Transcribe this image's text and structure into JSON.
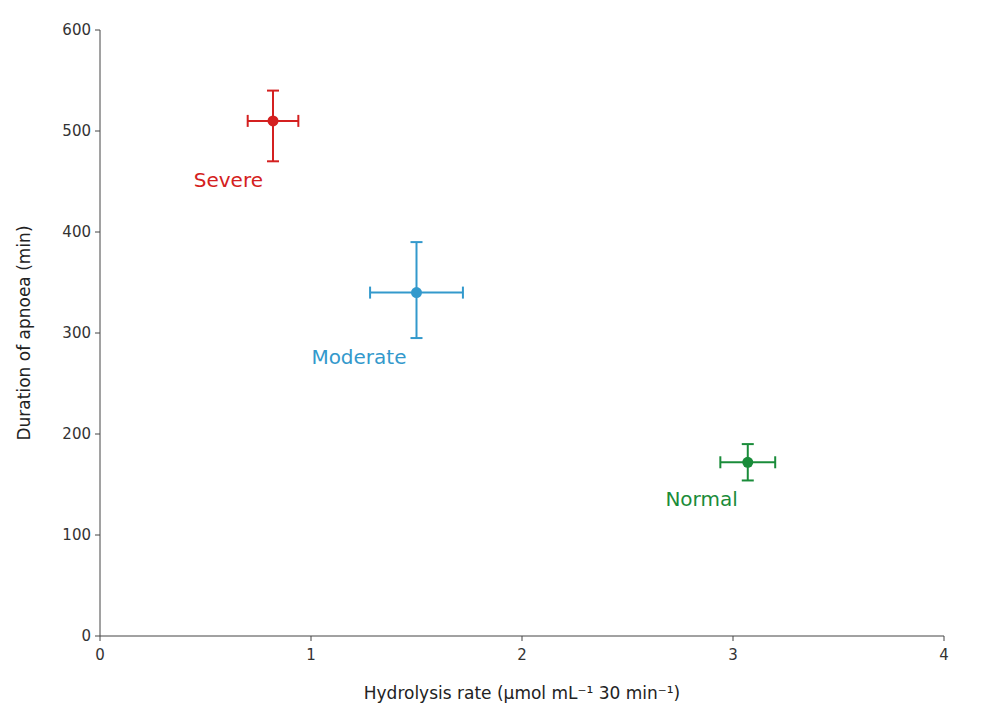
{
  "chart_data": {
    "type": "scatter",
    "xlabel": "Hydrolysis rate (μmol mL⁻¹ 30 min⁻¹)",
    "ylabel": "Duration of apnoea (min)",
    "xlim": [
      0,
      4
    ],
    "ylim": [
      0,
      600
    ],
    "xticks": [
      0,
      1,
      2,
      3,
      4
    ],
    "yticks": [
      0,
      100,
      200,
      300,
      400,
      500,
      600
    ],
    "grid": false,
    "marker": "circle",
    "series": [
      {
        "name": "Severe",
        "color": "#d42020",
        "x": [
          0.82
        ],
        "values": [
          510
        ],
        "xerr": [
          0.12
        ],
        "yerr_low": [
          40
        ],
        "yerr_high": [
          30
        ]
      },
      {
        "name": "Moderate",
        "color": "#3399cc",
        "x": [
          1.5
        ],
        "values": [
          340
        ],
        "xerr": [
          0.22
        ],
        "yerr_low": [
          45
        ],
        "yerr_high": [
          50
        ]
      },
      {
        "name": "Normal",
        "color": "#1a8c3a",
        "x": [
          3.07
        ],
        "values": [
          172
        ],
        "xerr": [
          0.13
        ],
        "yerr_low": [
          18
        ],
        "yerr_high": [
          18
        ]
      }
    ]
  }
}
